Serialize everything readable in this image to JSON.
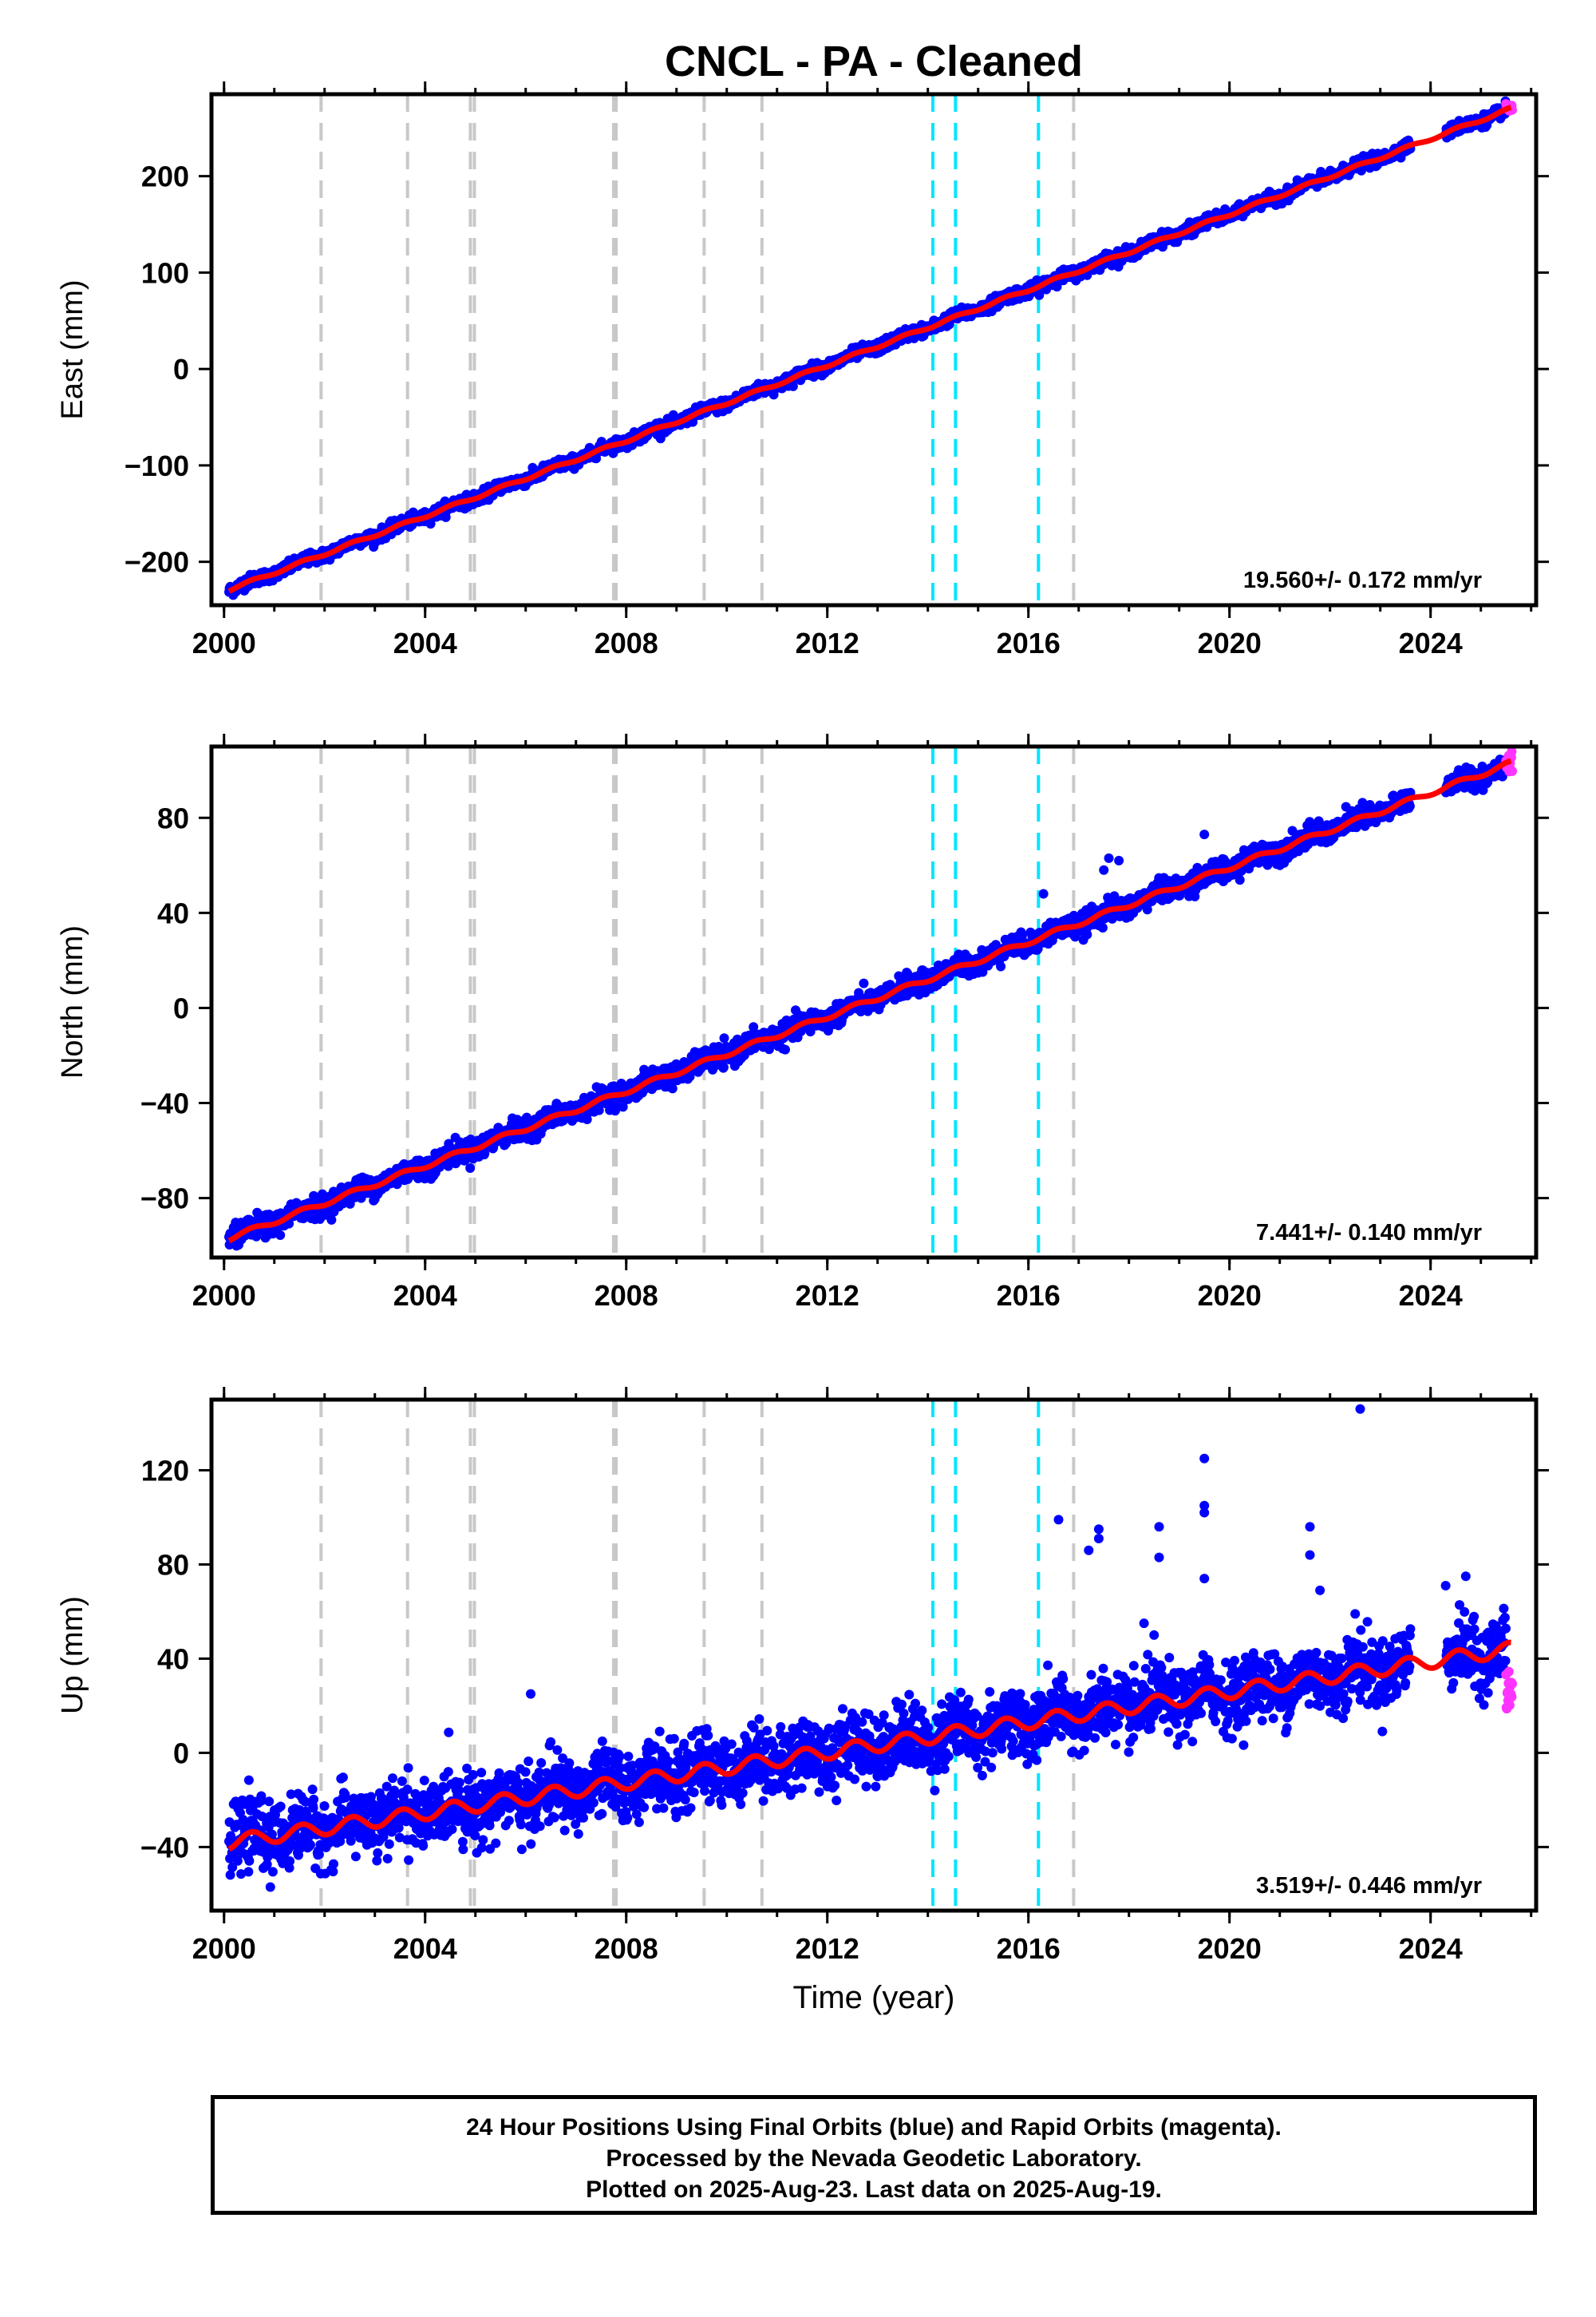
{
  "title": "CNCL  - PA - Cleaned",
  "xlabel": "Time (year)",
  "footer": {
    "line1": "24 Hour Positions Using Final Orbits (blue) and Rapid Orbits (magenta).",
    "line2": "Processed by the Nevada Geodetic Laboratory.",
    "line3": "Plotted on 2025-Aug-23. Last data on 2025-Aug-19."
  },
  "colors": {
    "final_points": "#0000ff",
    "rapid_points": "#ff33ff",
    "model_line": "#ff0000",
    "equipment_change": "#c8c8c8",
    "earthquake": "#00e5ff"
  },
  "chart_data": [
    {
      "type": "scatter",
      "component": "East",
      "ylabel": "East (mm)",
      "xlim": [
        1999.75,
        2026.1
      ],
      "ylim": [
        -245,
        285
      ],
      "xticks": [
        2000,
        2004,
        2008,
        2012,
        2016,
        2020,
        2024
      ],
      "yticks": [
        -200,
        -100,
        0,
        100,
        200
      ],
      "rate_label": "19.560+/- 0.172 mm/yr",
      "trend": {
        "start": [
          2000.1,
          -229
        ],
        "end": [
          2025.6,
          270
        ]
      },
      "scatter_sigma": 3,
      "data_gap": [
        2023.6,
        2024.3
      ],
      "rapid_range": [
        2025.5,
        2025.63
      ],
      "outliers": []
    },
    {
      "type": "scatter",
      "component": "North",
      "ylabel": "North (mm)",
      "xlim": [
        1999.75,
        2026.1
      ],
      "ylim": [
        -105,
        110
      ],
      "xticks": [
        2000,
        2004,
        2008,
        2012,
        2016,
        2020,
        2024
      ],
      "yticks": [
        -80,
        -40,
        0,
        40,
        80
      ],
      "rate_label": "7.441+/- 0.140 mm/yr",
      "trend": {
        "start": [
          2000.1,
          -97
        ],
        "end": [
          2025.6,
          103
        ]
      },
      "scatter_sigma": 2.2,
      "data_gap": [
        2023.6,
        2024.3
      ],
      "rapid_range": [
        2025.5,
        2025.63
      ],
      "outliers": [
        [
          2017.6,
          63
        ],
        [
          2017.8,
          62
        ],
        [
          2019.5,
          73
        ],
        [
          2016.3,
          48
        ],
        [
          2017.5,
          58
        ]
      ]
    },
    {
      "type": "scatter",
      "component": "Up",
      "ylabel": "Up (mm)",
      "xlim": [
        1999.75,
        2026.1
      ],
      "ylim": [
        -67,
        150
      ],
      "xticks": [
        2000,
        2004,
        2008,
        2012,
        2016,
        2020,
        2024
      ],
      "yticks": [
        -40,
        0,
        40,
        80,
        120
      ],
      "rate_label": "3.519+/- 0.446 mm/yr",
      "trend": {
        "start": [
          2000.1,
          -38
        ],
        "end": [
          2025.6,
          44
        ]
      },
      "scatter_sigma": 7,
      "data_gap": [
        2023.6,
        2024.3
      ],
      "rapid_range": [
        2025.5,
        2025.63
      ],
      "outliers": [
        [
          2006.1,
          25
        ],
        [
          2016.6,
          99
        ],
        [
          2017.4,
          95
        ],
        [
          2017.4,
          91
        ],
        [
          2017.2,
          86
        ],
        [
          2018.6,
          96
        ],
        [
          2018.6,
          83
        ],
        [
          2019.5,
          125
        ],
        [
          2019.5,
          105
        ],
        [
          2019.5,
          102
        ],
        [
          2019.5,
          74
        ],
        [
          2021.6,
          96
        ],
        [
          2021.6,
          84
        ],
        [
          2021.8,
          69
        ],
        [
          2022.6,
          146
        ],
        [
          2018.3,
          55
        ],
        [
          2018.5,
          50
        ],
        [
          2022.5,
          59
        ],
        [
          2024.7,
          75
        ],
        [
          2024.3,
          71
        ]
      ]
    }
  ],
  "events": {
    "equipment_change": [
      2001.93,
      2003.65,
      2004.9,
      2004.98,
      2007.75,
      2007.8,
      2009.55,
      2010.7,
      2016.9
    ],
    "earthquake": [
      2014.1,
      2014.55,
      2016.2
    ]
  }
}
